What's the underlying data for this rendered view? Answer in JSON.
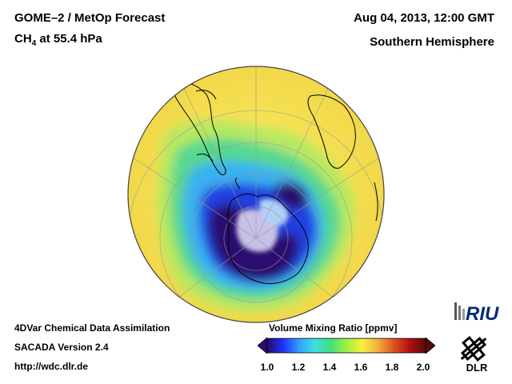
{
  "header": {
    "product": "GOME–2 / MetOp Forecast",
    "species": "CH",
    "species_sub": "4",
    "level": " at 55.4 hPa",
    "datetime": "Aug 04, 2013, 12:00 GMT",
    "hemisphere": "Southern Hemisphere"
  },
  "footer": {
    "line1": "4DVar Chemical Data Assimilation",
    "line2": "SACADA Version 2.4",
    "url": "http://wdc.dlr.de"
  },
  "colorbar": {
    "title": "Volume Mixing Ratio [ppmv]",
    "ticks": [
      "1.0",
      "1.2",
      "1.4",
      "1.6",
      "1.8",
      "2.0"
    ],
    "colors": [
      "#2a0a6e",
      "#2030ff",
      "#30a0ff",
      "#40e0e0",
      "#40e080",
      "#a0f040",
      "#f8f040",
      "#f0b040",
      "#e05020",
      "#b01010",
      "#5a0a0a"
    ]
  },
  "logos": {
    "riu": "RIU",
    "dlr": "DLR"
  },
  "map": {
    "projection": "orthographic-south-polar",
    "field_colors": {
      "outer": "#f4e84a",
      "mid": "#6ad88a",
      "inner": "#3aa0f8",
      "low": "#1a40e0",
      "core": "#2a0a6e",
      "center": "#c8c0e8"
    }
  }
}
